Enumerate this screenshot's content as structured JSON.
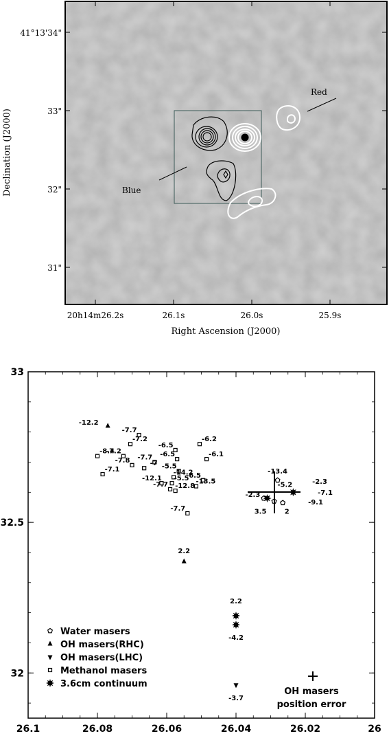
{
  "chart_data": [
    {
      "type": "heatmap",
      "xlabel": "Right Ascension (J2000)",
      "ylabel": "Declination (J2000)",
      "x_ticks": [
        {
          "v": 26.2,
          "label": "20h14m26.2s"
        },
        {
          "v": 26.1,
          "label": "26.1s"
        },
        {
          "v": 26.0,
          "label": "26.0s"
        },
        {
          "v": 25.9,
          "label": "25.9s"
        }
      ],
      "y_ticks": [
        {
          "v": 34,
          "label": "41°13'34\""
        },
        {
          "v": 33,
          "label": "33\""
        },
        {
          "v": 32,
          "label": "32\""
        },
        {
          "v": 31,
          "label": "31\""
        }
      ],
      "annotations": [
        "Red",
        "Blue"
      ],
      "blue_contours": [
        {
          "x": 26.065,
          "y": 32.67
        },
        {
          "x": 26.052,
          "y": 32.2
        }
      ],
      "red_contours": [
        {
          "x": 26.018,
          "y": 32.68
        },
        {
          "x": 25.973,
          "y": 32.89
        },
        {
          "x": 26.011,
          "y": 31.82
        }
      ]
    },
    {
      "type": "scatter",
      "xlim": [
        26.1,
        26.0
      ],
      "ylim": [
        31.85,
        33.0
      ],
      "x_ticks": [
        "26.1",
        "26.08",
        "26.06",
        "26.04",
        "26.02",
        "26"
      ],
      "y_ticks": [
        "33",
        "32.5",
        "32"
      ],
      "series": [
        {
          "name": "Water masers",
          "marker": "pentagon",
          "points": [
            {
              "x": 26.028,
              "y": 32.64,
              "label": "-13.4"
            },
            {
              "x": 26.032,
              "y": 32.58,
              "label": "-2.3"
            },
            {
              "x": 26.029,
              "y": 32.57,
              "label": "3.5"
            },
            {
              "x": 26.0265,
              "y": 32.565,
              "label": "2"
            }
          ]
        },
        {
          "name": "OH masers(RHC)",
          "marker": "triangle-up",
          "points": [
            {
              "x": 26.077,
              "y": 32.82,
              "label": "-12.2"
            },
            {
              "x": 26.055,
              "y": 32.37,
              "label": "2.2"
            }
          ]
        },
        {
          "name": "OH masers(LHC)",
          "marker": "triangle-down",
          "points": [
            {
              "x": 26.04,
              "y": 31.96,
              "label": "-3.7"
            }
          ]
        },
        {
          "name": "Methanol masers",
          "marker": "square",
          "points": [
            {
              "x": 26.068,
              "y": 32.79,
              "label": "-7.7"
            },
            {
              "x": 26.0705,
              "y": 32.76,
              "label": "-7.2"
            },
            {
              "x": 26.0725,
              "y": 32.72,
              "label": "-7.2"
            },
            {
              "x": 26.08,
              "y": 32.72,
              "label": "-8.4"
            },
            {
              "x": 26.07,
              "y": 32.69,
              "label": "-7.8"
            },
            {
              "x": 26.0665,
              "y": 32.68,
              "label": "-7"
            },
            {
              "x": 26.0635,
              "y": 32.7,
              "label": "-7.7"
            },
            {
              "x": 26.0785,
              "y": 32.66,
              "label": "-7.1"
            },
            {
              "x": 26.0575,
              "y": 32.74,
              "label": "-6.5"
            },
            {
              "x": 26.0505,
              "y": 32.76,
              "label": "-6.2"
            },
            {
              "x": 26.057,
              "y": 32.71,
              "label": "-6.5"
            },
            {
              "x": 26.0485,
              "y": 32.71,
              "label": "-6.1"
            },
            {
              "x": 26.0565,
              "y": 32.67,
              "label": "-5.5"
            },
            {
              "x": 26.058,
              "y": 32.65,
              "label": "-14.2"
            },
            {
              "x": 26.0615,
              "y": 32.63,
              "label": "-12.1"
            },
            {
              "x": 26.0585,
              "y": 32.63,
              "label": "-5.5"
            },
            {
              "x": 26.0495,
              "y": 32.64,
              "label": "-6.5"
            },
            {
              "x": 26.0515,
              "y": 32.62,
              "label": "-13.5"
            },
            {
              "x": 26.059,
              "y": 32.61,
              "label": "-7.7"
            },
            {
              "x": 26.0575,
              "y": 32.605,
              "label": "-12.8"
            },
            {
              "x": 26.054,
              "y": 32.53,
              "label": "-7.7"
            }
          ]
        },
        {
          "name": "3.6cm continuum",
          "marker": "star",
          "points": [
            {
              "x": 26.031,
              "y": 32.58,
              "label": ""
            },
            {
              "x": 26.0235,
              "y": 32.6,
              "label": "-5.2"
            },
            {
              "x": 26.04,
              "y": 32.19,
              "label": "2.2"
            },
            {
              "x": 26.04,
              "y": 32.16,
              "label": "-4.2"
            }
          ]
        }
      ],
      "extra_labels": [
        "-2.3",
        "-7.1",
        "-9.1"
      ],
      "error_bar_label": [
        "OH masers",
        "position error"
      ],
      "legend_position": "bottom-left"
    }
  ]
}
